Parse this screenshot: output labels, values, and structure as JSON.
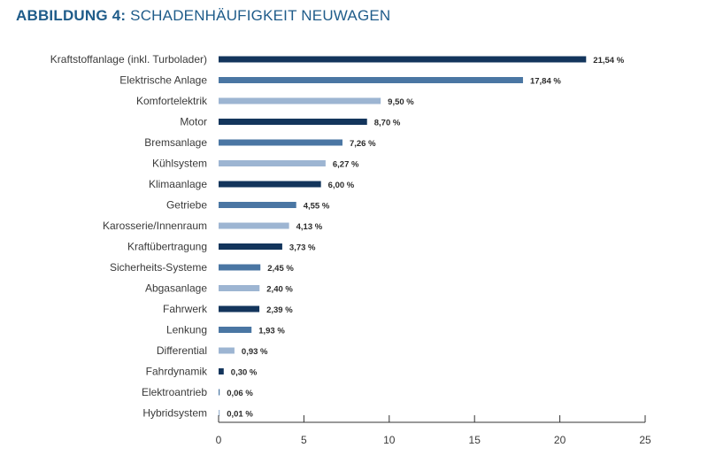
{
  "title": {
    "prefix": "ABBILDUNG 4:",
    "text": " SCHADENHÄUFIGKEIT NEUWAGEN"
  },
  "colors": {
    "title": "#1f5c8a",
    "bar_dark": "#13355c",
    "bar_medium": "#4a76a3",
    "bar_light": "#9db5d2",
    "axis": "#333333"
  },
  "chart_data": {
    "type": "bar",
    "orientation": "horizontal",
    "categories": [
      "Kraftstoffanlage (inkl. Turbolader)",
      "Elektrische Anlage",
      "Komfortelektrik",
      "Motor",
      "Bremsanlage",
      "Kühlsystem",
      "Klimaanlage",
      "Getriebe",
      "Karosserie/Innenraum",
      "Kraftübertragung",
      "Sicherheits-Systeme",
      "Abgasanlage",
      "Fahrwerk",
      "Lenkung",
      "Differential",
      "Fahrdynamik",
      "Elektroantrieb",
      "Hybridsystem"
    ],
    "values": [
      21.54,
      17.84,
      9.5,
      8.7,
      7.26,
      6.27,
      6.0,
      4.55,
      4.13,
      3.73,
      2.45,
      2.4,
      2.39,
      1.93,
      0.93,
      0.3,
      0.06,
      0.01
    ],
    "value_labels": [
      "21,54 %",
      "17,84 %",
      "9,50 %",
      "8,70 %",
      "7,26 %",
      "6,27 %",
      "6,00 %",
      "4,55 %",
      "4,13 %",
      "3,73 %",
      "2,45 %",
      "2,40 %",
      "2,39 %",
      "1,93 %",
      "0,93 %",
      "0,30 %",
      "0,06 %",
      "0,01 %"
    ],
    "bar_shades": [
      "dark",
      "medium",
      "light",
      "dark",
      "medium",
      "light",
      "dark",
      "medium",
      "light",
      "dark",
      "medium",
      "light",
      "dark",
      "medium",
      "light",
      "dark",
      "medium",
      "light"
    ],
    "xlim": [
      0,
      25
    ],
    "xticks": [
      0,
      5,
      10,
      15,
      20,
      25
    ],
    "xtick_labels": [
      "0",
      "5",
      "10",
      "15",
      "20",
      "25"
    ],
    "grid": false,
    "legend": "none"
  }
}
